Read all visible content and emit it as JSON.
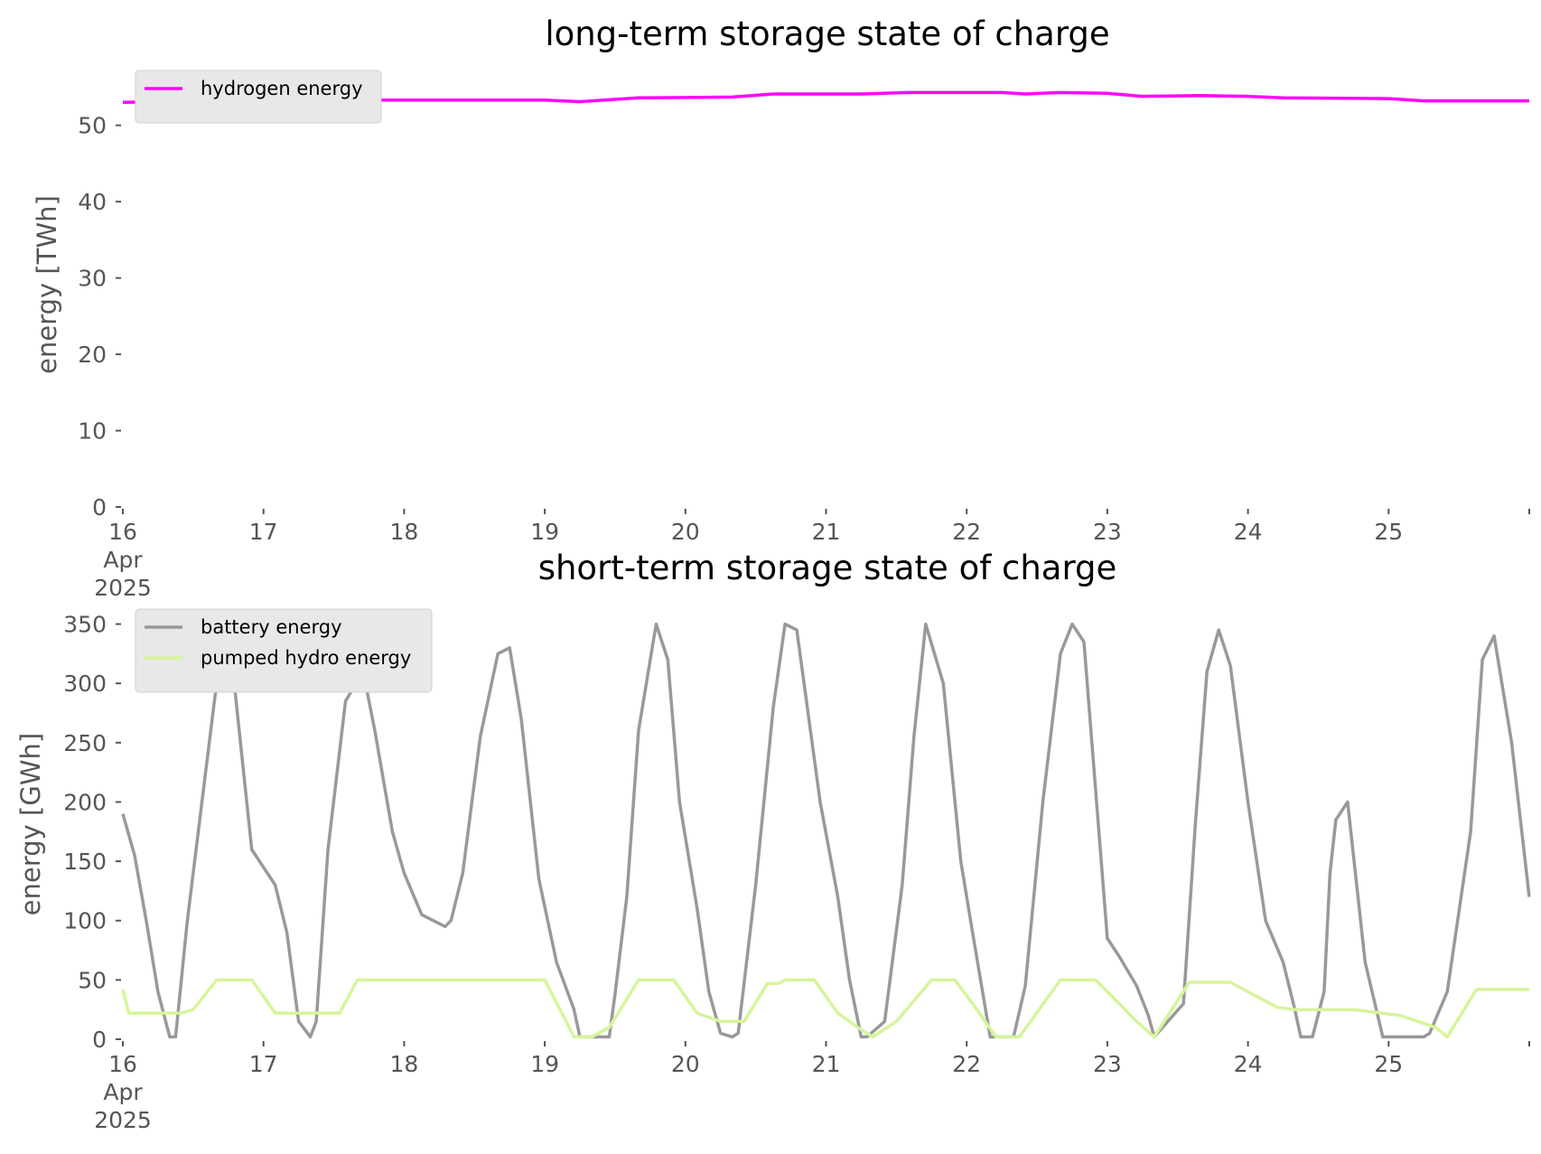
{
  "chart_data": [
    {
      "type": "line",
      "title": "long-term storage state of charge",
      "ylabel": "energy [TWh]",
      "xlabel": "",
      "xlim": [
        "2025-04-16 00:00",
        "2025-04-26 00:00"
      ],
      "ylim": [
        0,
        56
      ],
      "yticks": [
        0,
        10,
        20,
        30,
        40,
        50
      ],
      "xticks": [
        "16",
        "17",
        "18",
        "19",
        "20",
        "21",
        "22",
        "23",
        "24",
        "25"
      ],
      "xtick_first_sublabels": [
        "Apr",
        "2025"
      ],
      "grid": false,
      "legend_position": "top-left",
      "series": [
        {
          "name": "hydrogen energy",
          "color": "#ff00ff",
          "x": [
            "2025-04-16 00:00",
            "2025-04-17 00:00",
            "2025-04-18 00:00",
            "2025-04-19 00:00",
            "2025-04-19 06:00",
            "2025-04-19 16:00",
            "2025-04-20 08:00",
            "2025-04-20 15:00",
            "2025-04-21 06:00",
            "2025-04-21 14:00",
            "2025-04-22 06:00",
            "2025-04-22 10:00",
            "2025-04-22 16:00",
            "2025-04-23 00:00",
            "2025-04-23 06:00",
            "2025-04-23 16:00",
            "2025-04-24 00:00",
            "2025-04-24 06:00",
            "2025-04-25 00:00",
            "2025-04-25 06:00",
            "2025-04-26 00:00"
          ],
          "values": [
            53.0,
            53.3,
            53.3,
            53.3,
            53.1,
            53.6,
            53.7,
            54.1,
            54.1,
            54.3,
            54.3,
            54.1,
            54.3,
            54.2,
            53.8,
            53.9,
            53.8,
            53.6,
            53.5,
            53.2,
            53.2
          ]
        }
      ]
    },
    {
      "type": "line",
      "title": "short-term storage state of charge",
      "ylabel": "energy [GWh]",
      "xlabel": "",
      "xlim": [
        "2025-04-16 00:00",
        "2025-04-26 00:00"
      ],
      "ylim": [
        0,
        355
      ],
      "yticks": [
        0,
        50,
        100,
        150,
        200,
        250,
        300,
        350
      ],
      "xticks": [
        "16",
        "17",
        "18",
        "19",
        "20",
        "21",
        "22",
        "23",
        "24",
        "25"
      ],
      "xtick_first_sublabels": [
        "Apr",
        "2025"
      ],
      "grid": false,
      "legend_position": "top-left",
      "series": [
        {
          "name": "battery energy",
          "color": "#999999",
          "x": [
            "2025-04-16 00:00",
            "2025-04-16 02:00",
            "2025-04-16 04:00",
            "2025-04-16 06:00",
            "2025-04-16 08:00",
            "2025-04-16 09:00",
            "2025-04-16 11:00",
            "2025-04-16 14:00",
            "2025-04-16 17:00",
            "2025-04-16 19:00",
            "2025-04-16 22:00",
            "2025-04-17 00:00",
            "2025-04-17 02:00",
            "2025-04-17 04:00",
            "2025-04-17 06:00",
            "2025-04-17 08:00",
            "2025-04-17 09:00",
            "2025-04-17 11:00",
            "2025-04-17 14:00",
            "2025-04-17 17:00",
            "2025-04-17 19:00",
            "2025-04-17 22:00",
            "2025-04-18 00:00",
            "2025-04-18 03:00",
            "2025-04-18 07:00",
            "2025-04-18 08:00",
            "2025-04-18 10:00",
            "2025-04-18 13:00",
            "2025-04-18 16:00",
            "2025-04-18 18:00",
            "2025-04-18 20:00",
            "2025-04-18 23:00",
            "2025-04-19 02:00",
            "2025-04-19 05:00",
            "2025-04-19 06:00",
            "2025-04-19 11:00",
            "2025-04-19 12:00",
            "2025-04-19 14:00",
            "2025-04-19 16:00",
            "2025-04-19 19:00",
            "2025-04-19 21:00",
            "2025-04-19 23:00",
            "2025-04-20 02:00",
            "2025-04-20 04:00",
            "2025-04-20 06:00",
            "2025-04-20 08:00",
            "2025-04-20 09:00",
            "2025-04-20 12:00",
            "2025-04-20 15:00",
            "2025-04-20 17:00",
            "2025-04-20 19:00",
            "2025-04-20 23:00",
            "2025-04-21 02:00",
            "2025-04-21 04:00",
            "2025-04-21 06:00",
            "2025-04-21 07:00",
            "2025-04-21 10:00",
            "2025-04-21 13:00",
            "2025-04-21 15:00",
            "2025-04-21 17:00",
            "2025-04-21 20:00",
            "2025-04-21 23:00",
            "2025-04-22 01:00",
            "2025-04-22 04:00",
            "2025-04-22 08:00",
            "2025-04-22 10:00",
            "2025-04-22 13:00",
            "2025-04-22 16:00",
            "2025-04-22 18:00",
            "2025-04-22 20:00",
            "2025-04-23 00:00",
            "2025-04-23 02:00",
            "2025-04-23 05:00",
            "2025-04-23 07:00",
            "2025-04-23 08:00",
            "2025-04-23 13:00",
            "2025-04-23 15:00",
            "2025-04-23 17:00",
            "2025-04-23 19:00",
            "2025-04-23 21:00",
            "2025-04-24 00:00",
            "2025-04-24 03:00",
            "2025-04-24 06:00",
            "2025-04-24 08:00",
            "2025-04-24 09:00",
            "2025-04-24 11:00",
            "2025-04-24 13:00",
            "2025-04-24 14:00",
            "2025-04-24 15:00",
            "2025-04-24 17:00",
            "2025-04-24 20:00",
            "2025-04-24 23:00",
            "2025-04-25 06:00",
            "2025-04-25 07:00",
            "2025-04-25 10:00",
            "2025-04-25 14:00",
            "2025-04-25 16:00",
            "2025-04-25 18:00",
            "2025-04-25 21:00",
            "2025-04-26 00:00"
          ],
          "values": [
            190,
            155,
            100,
            40,
            2,
            2,
            100,
            220,
            340,
            300,
            160,
            145,
            130,
            90,
            15,
            2,
            15,
            160,
            285,
            310,
            260,
            175,
            140,
            105,
            95,
            100,
            140,
            255,
            325,
            330,
            270,
            135,
            65,
            25,
            2,
            2,
            38,
            120,
            260,
            350,
            320,
            200,
            110,
            40,
            5,
            2,
            5,
            130,
            280,
            350,
            345,
            200,
            120,
            50,
            2,
            2,
            15,
            130,
            255,
            350,
            300,
            150,
            90,
            2,
            2,
            45,
            200,
            325,
            350,
            335,
            85,
            70,
            45,
            20,
            2,
            30,
            180,
            310,
            345,
            315,
            200,
            100,
            65,
            25,
            2,
            2,
            40,
            140,
            185,
            200,
            65,
            2,
            2,
            5,
            40,
            175,
            320,
            340,
            250,
            120
          ]
        },
        {
          "name": "pumped hydro energy",
          "color": "#d5f59a",
          "x": [
            "2025-04-16 00:00",
            "2025-04-16 01:00",
            "2025-04-16 05:00",
            "2025-04-16 10:00",
            "2025-04-16 12:00",
            "2025-04-16 16:00",
            "2025-04-16 22:00",
            "2025-04-17 02:00",
            "2025-04-17 09:00",
            "2025-04-17 13:00",
            "2025-04-17 16:00",
            "2025-04-19 00:00",
            "2025-04-19 05:00",
            "2025-04-19 08:00",
            "2025-04-19 11:00",
            "2025-04-19 16:00",
            "2025-04-19 22:00",
            "2025-04-20 02:00",
            "2025-04-20 06:00",
            "2025-04-20 07:00",
            "2025-04-20 10:00",
            "2025-04-20 14:00",
            "2025-04-20 16:00",
            "2025-04-20 17:00",
            "2025-04-20 22:00",
            "2025-04-21 02:00",
            "2025-04-21 06:00",
            "2025-04-21 08:00",
            "2025-04-21 12:00",
            "2025-04-21 18:00",
            "2025-04-21 22:00",
            "2025-04-22 01:00",
            "2025-04-22 05:00",
            "2025-04-22 09:00",
            "2025-04-22 16:00",
            "2025-04-22 22:00",
            "2025-04-23 02:00",
            "2025-04-23 05:00",
            "2025-04-23 08:00",
            "2025-04-23 14:00",
            "2025-04-23 21:00",
            "2025-04-24 00:00",
            "2025-04-24 05:00",
            "2025-04-24 08:00",
            "2025-04-24 18:00",
            "2025-04-25 02:00",
            "2025-04-25 08:00",
            "2025-04-25 10:00",
            "2025-04-25 15:00",
            "2025-04-26 00:00"
          ],
          "values": [
            42,
            22,
            22,
            22,
            25,
            50,
            50,
            22,
            22,
            22,
            50,
            50,
            2,
            2,
            10,
            50,
            50,
            22,
            15,
            15,
            15,
            47,
            47,
            50,
            50,
            22,
            8,
            2,
            15,
            50,
            50,
            30,
            2,
            2,
            50,
            50,
            30,
            15,
            2,
            48,
            48,
            40,
            27,
            25,
            25,
            20,
            10,
            2,
            42,
            42
          ]
        }
      ]
    }
  ]
}
